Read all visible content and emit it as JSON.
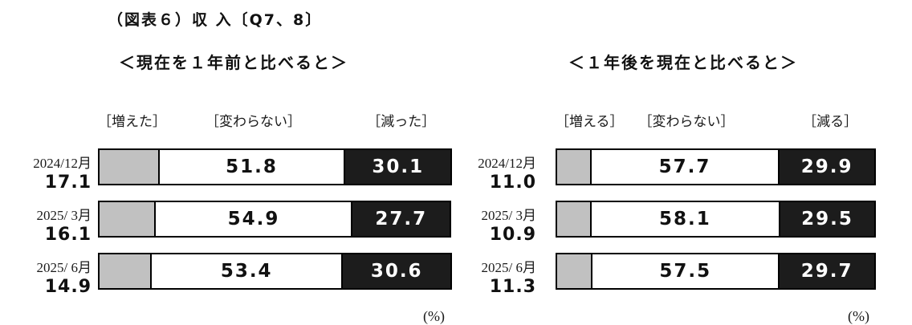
{
  "page": {
    "title": "（図表６）収 入〔Q7、8〕"
  },
  "colors": {
    "increase_fill": "#c1c1c1",
    "unchanged_fill": "#ffffff",
    "decrease_fill": "#1c1c1c",
    "border": "#000000"
  },
  "charts": [
    {
      "subtitle": "＜現在を１年前と比べると＞",
      "legend": [
        "［増えた］",
        "［変わらない］",
        "［減った］"
      ],
      "percent_label": "(%)",
      "rows": [
        {
          "label": "2024/12月",
          "increase": "17.1",
          "unchanged": "51.8",
          "decrease": "30.1"
        },
        {
          "label": "2025/ 3月",
          "increase": "16.1",
          "unchanged": "54.9",
          "decrease": "27.7"
        },
        {
          "label": "2025/ 6月",
          "increase": "14.9",
          "unchanged": "53.4",
          "decrease": "30.6"
        }
      ]
    },
    {
      "subtitle": "＜１年後を現在と比べると＞",
      "legend": [
        "［増える］",
        "［変わらない］",
        "［減る］"
      ],
      "percent_label": "(%)",
      "rows": [
        {
          "label": "2024/12月",
          "increase": "11.0",
          "unchanged": "57.7",
          "decrease": "29.9"
        },
        {
          "label": "2025/ 3月",
          "increase": "10.9",
          "unchanged": "58.1",
          "decrease": "29.5"
        },
        {
          "label": "2025/ 6月",
          "increase": "11.3",
          "unchanged": "57.5",
          "decrease": "29.7"
        }
      ]
    }
  ],
  "chart_data": [
    {
      "type": "bar",
      "subtype": "horizontal-stacked",
      "title": "＜現在を１年前と比べると＞",
      "categories": [
        "2024/12月",
        "2025/ 3月",
        "2025/ 6月"
      ],
      "series": [
        {
          "name": "増えた",
          "values": [
            17.1,
            16.1,
            14.9
          ]
        },
        {
          "name": "変わらない",
          "values": [
            51.8,
            54.9,
            53.4
          ]
        },
        {
          "name": "減った",
          "values": [
            30.1,
            27.7,
            30.6
          ]
        }
      ],
      "xlim": [
        0,
        100
      ],
      "unit": "%",
      "legend_position": "top",
      "grid": false
    },
    {
      "type": "bar",
      "subtype": "horizontal-stacked",
      "title": "＜１年後を現在と比べると＞",
      "categories": [
        "2024/12月",
        "2025/ 3月",
        "2025/ 6月"
      ],
      "series": [
        {
          "name": "増える",
          "values": [
            11.0,
            10.9,
            11.3
          ]
        },
        {
          "name": "変わらない",
          "values": [
            57.7,
            58.1,
            57.5
          ]
        },
        {
          "name": "減る",
          "values": [
            29.9,
            29.5,
            29.7
          ]
        }
      ],
      "xlim": [
        0,
        100
      ],
      "unit": "%",
      "legend_position": "top",
      "grid": false
    }
  ]
}
